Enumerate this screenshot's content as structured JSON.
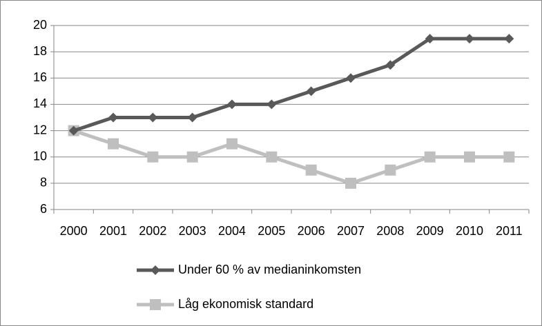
{
  "chart_data": {
    "type": "line",
    "categories": [
      "2000",
      "2001",
      "2002",
      "2003",
      "2004",
      "2005",
      "2006",
      "2007",
      "2008",
      "2009",
      "2010",
      "2011"
    ],
    "series": [
      {
        "name": "Under 60 % av medianinkomsten",
        "color": "#595959",
        "marker": "diamond",
        "values": [
          12,
          13,
          13,
          13,
          14,
          14,
          15,
          16,
          17,
          19,
          19,
          19
        ]
      },
      {
        "name": "Låg ekonomisk standard",
        "color": "#bfbfbf",
        "marker": "square",
        "values": [
          12,
          11,
          10,
          10,
          11,
          10,
          9,
          8,
          9,
          10,
          10,
          10
        ]
      }
    ],
    "ylim": [
      6,
      20
    ],
    "yticks": [
      6,
      8,
      10,
      12,
      14,
      16,
      18,
      20
    ],
    "grid": true,
    "legend": "bottom"
  }
}
